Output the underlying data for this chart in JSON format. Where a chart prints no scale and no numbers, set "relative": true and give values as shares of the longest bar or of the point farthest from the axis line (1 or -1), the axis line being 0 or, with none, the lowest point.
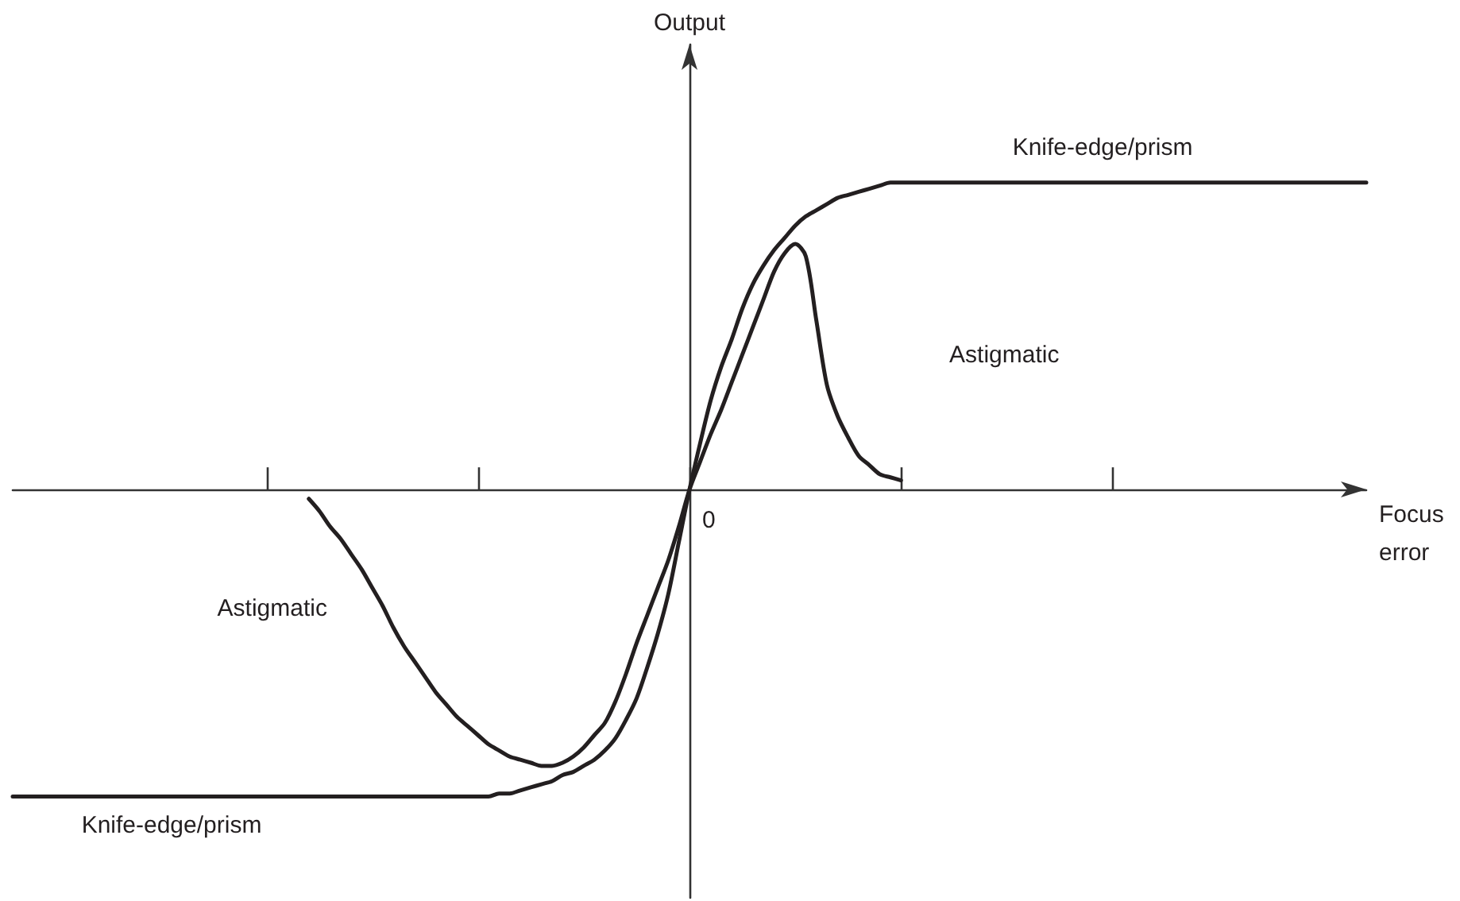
{
  "chart_data": {
    "type": "line",
    "xlabel": "Focus error",
    "relative": true,
    "tick_labels": false,
    "marker": "none",
    "annotations": [
      "Output",
      "0"
    ],
    "categories": [
      null,
      null,
      null,
      null,
      null,
      null,
      null,
      null,
      null,
      null,
      null,
      null,
      null,
      null,
      null,
      null,
      null,
      null,
      null,
      null,
      null,
      null,
      null,
      null,
      null,
      null,
      null,
      null,
      null,
      null,
      null,
      null,
      null,
      null,
      null,
      null,
      null,
      null,
      null,
      null,
      null,
      null,
      null,
      null,
      null,
      null,
      null,
      null,
      null,
      null,
      null,
      null,
      null,
      null,
      null,
      null,
      null,
      null,
      null,
      null,
      null,
      null,
      null,
      null,
      null,
      null,
      null,
      null,
      null,
      null,
      null,
      null,
      null,
      null,
      null,
      null,
      null,
      null,
      null,
      null,
      null,
      null,
      null,
      null,
      null,
      null,
      null,
      null,
      null,
      null,
      null,
      null,
      null,
      null,
      null,
      null,
      null,
      null,
      null,
      null,
      null,
      null,
      null,
      null,
      null,
      null,
      null,
      null,
      null,
      null,
      null,
      null,
      null,
      null,
      null,
      null,
      null,
      null,
      null,
      null,
      null,
      null,
      null,
      null,
      null,
      null,
      null,
      null,
      null
    ],
    "series": [
      {
        "name": "Knife-edge/prism",
        "color": "#231f20",
        "values": [
          -1,
          -1,
          -1,
          -1,
          -1,
          -1,
          -1,
          -1,
          -1,
          -1,
          -1,
          -1,
          -1,
          -1,
          -1,
          -1,
          -1,
          -1,
          -1,
          -1,
          -1,
          -1,
          -1,
          -1,
          -1,
          -1,
          -1,
          -1,
          -1,
          -1,
          -1,
          -1,
          -1,
          -1,
          -1,
          -1,
          -1,
          -1,
          -1,
          -1,
          -1,
          -1,
          -1,
          -1,
          -1,
          -1,
          -0.99,
          -0.99,
          -0.98,
          -0.97,
          -0.96,
          -0.95,
          -0.93,
          -0.92,
          -0.9,
          -0.88,
          -0.85,
          -0.81,
          -0.75,
          -0.68,
          -0.58,
          -0.47,
          -0.34,
          -0.17,
          0,
          0.15,
          0.29,
          0.4,
          0.49,
          0.59,
          0.67,
          0.73,
          0.78,
          0.82,
          0.86,
          0.89,
          0.91,
          0.93,
          0.95,
          0.96,
          0.97,
          0.98,
          0.99,
          1,
          1,
          1,
          1,
          1,
          1,
          1,
          1,
          1,
          1,
          1,
          1,
          1,
          1,
          1,
          1,
          1,
          1,
          1,
          1,
          1,
          1,
          1,
          1,
          1,
          1,
          1,
          1,
          1,
          1,
          1,
          1,
          1,
          1,
          1,
          1,
          1,
          1,
          1,
          1,
          1,
          1,
          1,
          1,
          1,
          1
        ]
      },
      {
        "name": "Astigmatic",
        "color": "#231f20",
        "values": [
          null,
          null,
          null,
          null,
          null,
          null,
          null,
          null,
          null,
          null,
          null,
          null,
          null,
          null,
          null,
          null,
          null,
          null,
          null,
          null,
          null,
          null,
          null,
          null,
          null,
          null,
          null,
          null,
          -0.03,
          -0.07,
          -0.12,
          -0.16,
          -0.21,
          -0.26,
          -0.32,
          -0.38,
          -0.45,
          -0.51,
          -0.56,
          -0.61,
          -0.66,
          -0.7,
          -0.74,
          -0.77,
          -0.8,
          -0.83,
          -0.85,
          -0.87,
          -0.88,
          -0.89,
          -0.9,
          -0.9,
          -0.89,
          -0.87,
          -0.84,
          -0.8,
          -0.76,
          -0.69,
          -0.6,
          -0.5,
          -0.41,
          -0.32,
          -0.23,
          -0.12,
          0,
          0.09,
          0.18,
          0.26,
          0.35,
          0.44,
          0.53,
          0.62,
          0.71,
          0.77,
          0.8,
          0.76,
          0.55,
          0.34,
          0.24,
          0.17,
          0.11,
          0.08,
          0.05,
          0.04,
          0.03,
          null,
          null,
          null,
          null,
          null,
          null,
          null,
          null,
          null,
          null,
          null,
          null,
          null,
          null,
          null,
          null,
          null,
          null,
          null,
          null,
          null,
          null,
          null,
          null,
          null,
          null,
          null,
          null,
          null,
          null,
          null,
          null,
          null,
          null,
          null,
          null,
          null,
          null,
          null,
          null,
          null,
          null,
          null,
          null
        ]
      }
    ]
  }
}
